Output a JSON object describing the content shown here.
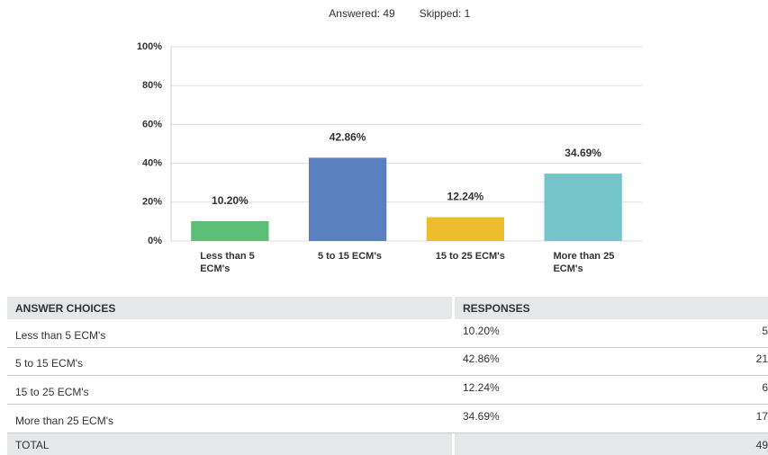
{
  "header": {
    "answered": "Answered: 49",
    "skipped": "Skipped: 1"
  },
  "chart_data": {
    "type": "bar",
    "categories": [
      "Less than 5 ECM's",
      "5 to 15 ECM's",
      "15 to 25 ECM's",
      "More than 25 ECM's"
    ],
    "values": [
      10.2,
      42.86,
      12.24,
      34.69
    ],
    "value_labels": [
      "10.20%",
      "42.86%",
      "12.24%",
      "34.69%"
    ],
    "colors": [
      "#5cbe77",
      "#5a7fbf",
      "#ecbd2c",
      "#76c4cb"
    ],
    "ylim": [
      0,
      100
    ],
    "yticks": [
      {
        "value": 0,
        "label": "0%"
      },
      {
        "value": 20,
        "label": "20%"
      },
      {
        "value": 40,
        "label": "40%"
      },
      {
        "value": 60,
        "label": "60%"
      },
      {
        "value": 80,
        "label": "80%"
      },
      {
        "value": 100,
        "label": "100%"
      }
    ],
    "grid": true
  },
  "table": {
    "columns": [
      "ANSWER CHOICES",
      "RESPONSES"
    ],
    "rows": [
      [
        "Less than 5 ECM's",
        "10.20%",
        5
      ],
      [
        "5 to 15 ECM's",
        "42.86%",
        21
      ],
      [
        "15 to 25 ECM's",
        "12.24%",
        6
      ],
      [
        "More than 25 ECM's",
        "34.69%",
        17
      ]
    ],
    "total": [
      "TOTAL",
      49
    ]
  }
}
